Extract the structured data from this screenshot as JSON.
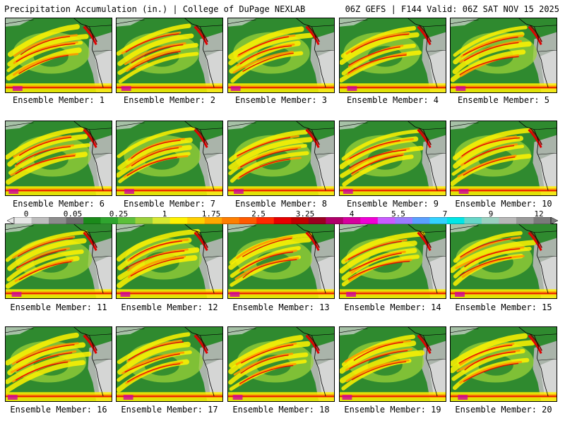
{
  "header": {
    "left": "Precipitation Accumulation (in.) | College of DuPage NEXLAB",
    "right": "06Z GEFS | F144 Valid: 06Z SAT NOV 15 2025"
  },
  "panels": [
    {
      "label": "Ensemble Member: 1"
    },
    {
      "label": "Ensemble Member: 2"
    },
    {
      "label": "Ensemble Member: 3"
    },
    {
      "label": "Ensemble Member: 4"
    },
    {
      "label": "Ensemble Member: 5"
    },
    {
      "label": "Ensemble Member: 6"
    },
    {
      "label": "Ensemble Member: 7"
    },
    {
      "label": "Ensemble Member: 8"
    },
    {
      "label": "Ensemble Member: 9"
    },
    {
      "label": "Ensemble Member: 10"
    },
    {
      "label": "Ensemble Member: 11"
    },
    {
      "label": "Ensemble Member: 12"
    },
    {
      "label": "Ensemble Member: 13"
    },
    {
      "label": "Ensemble Member: 14"
    },
    {
      "label": "Ensemble Member: 15"
    },
    {
      "label": "Ensemble Member: 16"
    },
    {
      "label": "Ensemble Member: 17"
    },
    {
      "label": "Ensemble Member: 18"
    },
    {
      "label": "Ensemble Member: 19"
    },
    {
      "label": "Ensemble Member: 20"
    }
  ],
  "colorbar": {
    "labels": [
      "0",
      "0.05",
      "0.25",
      "1",
      "1.75",
      "2.5",
      "3.25",
      "4",
      "5.5",
      "7",
      "9",
      "12"
    ],
    "colors": [
      "#e6e6e6",
      "#bdbdbd",
      "#8c8c8c",
      "#6e6e6e",
      "#1a8a1a",
      "#2fa52f",
      "#5cbf3a",
      "#9bd13a",
      "#d8e832",
      "#fff200",
      "#ffd000",
      "#ffa800",
      "#ff7f00",
      "#ff5a00",
      "#ff2a00",
      "#e60000",
      "#c00000",
      "#9a0020",
      "#b0006a",
      "#d6009e",
      "#f000d6",
      "#c95cff",
      "#9a7cff",
      "#5aa0ff",
      "#33d2ff",
      "#00e6e6",
      "#66d6c8",
      "#9ad0c0",
      "#b8b8b8",
      "#9a9a9a",
      "#7a7a7a"
    ]
  },
  "map_colors": {
    "ocean_dry": "#2f8a2f",
    "light": "#9bd13a",
    "yellow": "#fff200",
    "orange": "#ff9a00",
    "red": "#e00000",
    "magenta": "#d000a0",
    "land_gray": "#b8b8b8",
    "land_light": "#d9d9d9"
  }
}
